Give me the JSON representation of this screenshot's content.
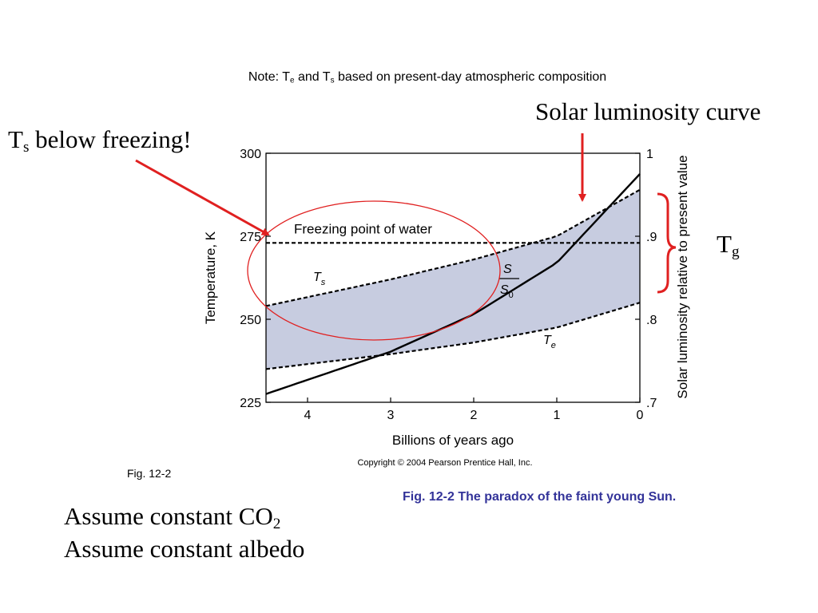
{
  "note": {
    "prefix": "Note: T",
    "sub1": "e",
    "mid": " and T",
    "sub2": "s",
    "suffix": " based on present-day atmospheric composition"
  },
  "annotations": {
    "ts_main": "T",
    "ts_sub": "s",
    "ts_rest": " below freezing!",
    "solar": "Solar luminosity curve",
    "tg_main": "T",
    "tg_sub": "g"
  },
  "fig_label": "Fig. 12-2",
  "caption": "Fig. 12-2  The paradox of the faint young Sun.",
  "assumptions": {
    "line1_main": "Assume constant CO",
    "line1_sub": "2",
    "line2": "Assume constant albedo"
  },
  "colors": {
    "band": "#c7cce0",
    "arrow": "#e02020",
    "ellipse": "#e02020",
    "caption": "#333399"
  },
  "chart_data": {
    "type": "line",
    "xlabel": "Billions of years ago",
    "ylabel": "Temperature, K",
    "y2label": "Solar luminosity relative to present value",
    "xlim": [
      4.5,
      0
    ],
    "ylim": [
      225,
      300
    ],
    "y2lim": [
      0.7,
      1.0
    ],
    "xticks": [
      "4",
      "3",
      "2",
      "1",
      "0"
    ],
    "yticks": [
      "225",
      "250",
      "275",
      "300"
    ],
    "y2ticks": [
      ".7",
      ".8",
      ".9",
      "1"
    ],
    "freezing_label": "Freezing point of water",
    "copyright": "Copyright © 2004 Pearson Prentice Hall, Inc.",
    "series": [
      {
        "name": "T",
        "name_sub": "s",
        "style": "dashed",
        "x": [
          4.5,
          3,
          2,
          1,
          0
        ],
        "y": [
          254,
          262,
          268,
          275,
          289
        ]
      },
      {
        "name": "T",
        "name_sub": "e",
        "style": "dashed",
        "x": [
          4.5,
          3,
          2,
          1,
          0
        ],
        "y": [
          235,
          239.5,
          243,
          247.5,
          255
        ]
      },
      {
        "name": "S",
        "name_den": "S",
        "name_den_sub": "0",
        "style": "solid",
        "axis": "y2",
        "x": [
          4.5,
          4,
          3,
          2,
          1,
          0
        ],
        "y": [
          0.71,
          0.727,
          0.761,
          0.806,
          0.868,
          0.975
        ]
      }
    ],
    "reference_line": {
      "label": "Freezing point of water",
      "y": 273
    }
  }
}
